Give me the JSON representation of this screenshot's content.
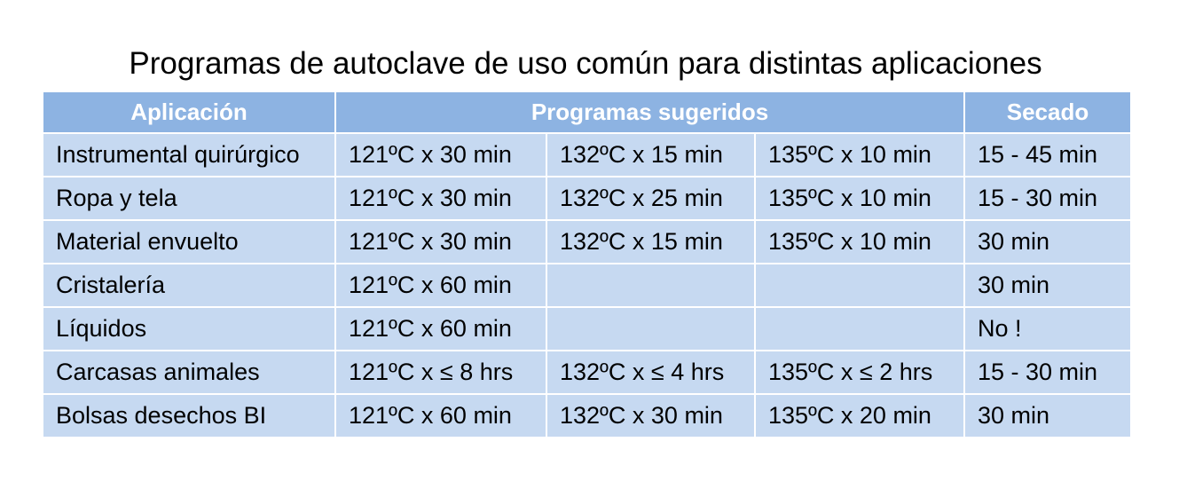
{
  "title": "Programas de autoclave de uso común para distintas aplicaciones",
  "colors": {
    "header_bg": "#8db3e2",
    "cell_bg": "#c6d9f1",
    "header_text": "#ffffff"
  },
  "headers": {
    "application": "Aplicación",
    "programs": "Programas sugeridos",
    "drying": "Secado"
  },
  "rows": [
    {
      "app": "Instrumental quirúrgico",
      "p1": "121ºC x 30 min",
      "p2": "132ºC x 15 min",
      "p3": "135ºC x 10 min",
      "dry": "15 - 45 min"
    },
    {
      "app": "Ropa y tela",
      "p1": "121ºC x 30 min",
      "p2": "132ºC x 25 min",
      "p3": "135ºC x 10 min",
      "dry": "15 - 30 min"
    },
    {
      "app": "Material envuelto",
      "p1": "121ºC x 30 min",
      "p2": "132ºC x 15 min",
      "p3": "135ºC x 10 min",
      "dry": "30 min"
    },
    {
      "app": "Cristalería",
      "p1": "121ºC x 60 min",
      "p2": "",
      "p3": "",
      "dry": "30 min"
    },
    {
      "app": "Líquidos",
      "p1": "121ºC x 60 min",
      "p2": "",
      "p3": "",
      "dry": "No !"
    },
    {
      "app": "Carcasas animales",
      "p1": "121ºC x ≤ 8 hrs",
      "p2": "132ºC x ≤ 4 hrs",
      "p3": "135ºC x ≤ 2 hrs",
      "dry": "15 - 30 min"
    },
    {
      "app": "Bolsas desechos BI",
      "p1": "121ºC x 60 min",
      "p2": "132ºC x 30 min",
      "p3": "135ºC x 20 min",
      "dry": "30 min"
    }
  ]
}
